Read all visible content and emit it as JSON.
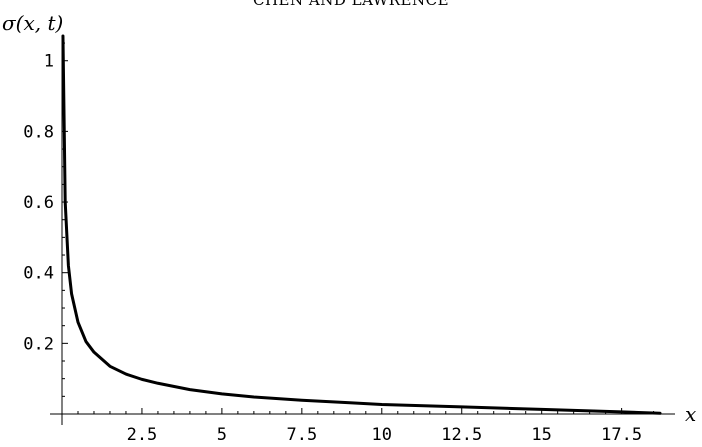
{
  "header": {
    "running_head": "CHEN AND LAWRENCE"
  },
  "chart_data": {
    "type": "line",
    "ylabel": "σ(x, t)",
    "xlabel": "x",
    "xlim": [
      0,
      18.7
    ],
    "ylim": [
      0,
      1.07
    ],
    "x_ticks": [
      2.5,
      5,
      7.5,
      10,
      12.5,
      15,
      17.5
    ],
    "x_tick_labels": [
      "2.5",
      "5",
      "7.5",
      "10",
      "12.5",
      "15",
      "17.5"
    ],
    "y_ticks": [
      0.2,
      0.4,
      0.6,
      0.8,
      1
    ],
    "y_tick_labels": [
      "0.2",
      "0.4",
      "0.6",
      "0.8",
      "1"
    ],
    "grid": false,
    "legend": "none",
    "series": [
      {
        "color": "#000000",
        "x": [
          0.03,
          0.1,
          0.2,
          0.3,
          0.5,
          0.75,
          1,
          1.5,
          2,
          2.5,
          3,
          4,
          5,
          6,
          7.5,
          9,
          10,
          12.5,
          15,
          17.5,
          18.7
        ],
        "y": [
          1.07,
          0.6,
          0.42,
          0.34,
          0.26,
          0.205,
          0.175,
          0.135,
          0.113,
          0.098,
          0.087,
          0.069,
          0.057,
          0.048,
          0.039,
          0.032,
          0.027,
          0.02,
          0.013,
          0.006,
          0.002
        ]
      }
    ]
  }
}
